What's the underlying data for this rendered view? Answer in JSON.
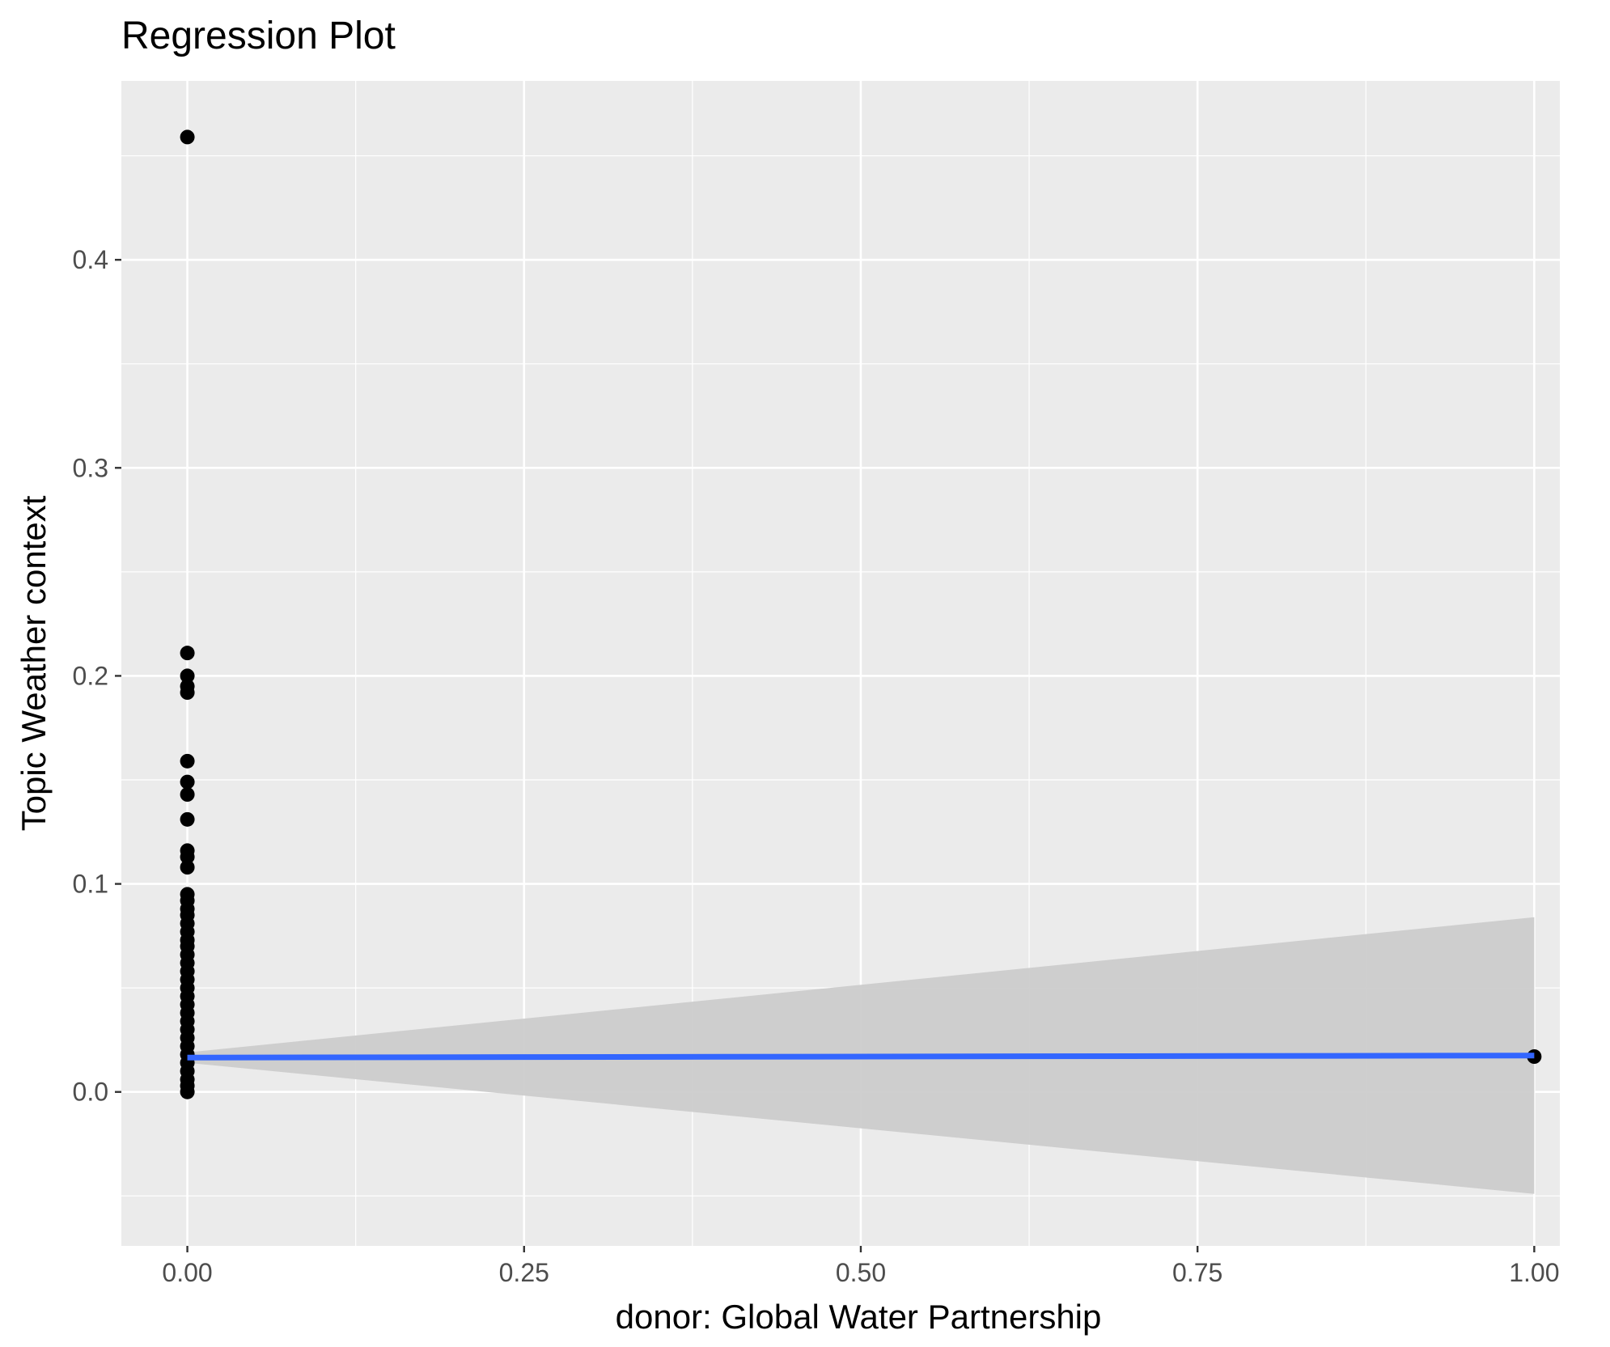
{
  "chart_data": {
    "type": "scatter",
    "title": "Regression Plot",
    "xlabel": "donor: Global Water Partnership",
    "ylabel": "Topic Weather context",
    "xlim": [
      -0.049,
      1.019
    ],
    "ylim": [
      -0.074,
      0.486
    ],
    "x_ticks": [
      {
        "value": 0.0,
        "label": "0.00"
      },
      {
        "value": 0.25,
        "label": "0.25"
      },
      {
        "value": 0.5,
        "label": "0.50"
      },
      {
        "value": 0.75,
        "label": "0.75"
      },
      {
        "value": 1.0,
        "label": "1.00"
      }
    ],
    "y_ticks": [
      {
        "value": 0.0,
        "label": "0.0"
      },
      {
        "value": 0.1,
        "label": "0.1"
      },
      {
        "value": 0.2,
        "label": "0.2"
      },
      {
        "value": 0.3,
        "label": "0.3"
      },
      {
        "value": 0.4,
        "label": "0.4"
      }
    ],
    "grid": true,
    "legend": "none",
    "points": [
      {
        "x": 0,
        "y": 0.459
      },
      {
        "x": 0,
        "y": 0.211
      },
      {
        "x": 0,
        "y": 0.2
      },
      {
        "x": 0,
        "y": 0.195
      },
      {
        "x": 0,
        "y": 0.192
      },
      {
        "x": 0,
        "y": 0.159
      },
      {
        "x": 0,
        "y": 0.149
      },
      {
        "x": 0,
        "y": 0.143
      },
      {
        "x": 0,
        "y": 0.131
      },
      {
        "x": 0,
        "y": 0.116
      },
      {
        "x": 0,
        "y": 0.113
      },
      {
        "x": 0,
        "y": 0.108
      },
      {
        "x": 0,
        "y": 0.095
      },
      {
        "x": 0,
        "y": 0.092
      },
      {
        "x": 0,
        "y": 0.088
      },
      {
        "x": 0,
        "y": 0.085
      },
      {
        "x": 0,
        "y": 0.081
      },
      {
        "x": 0,
        "y": 0.077
      },
      {
        "x": 0,
        "y": 0.073
      },
      {
        "x": 0,
        "y": 0.07
      },
      {
        "x": 0,
        "y": 0.066
      },
      {
        "x": 0,
        "y": 0.062
      },
      {
        "x": 0,
        "y": 0.058
      },
      {
        "x": 0,
        "y": 0.054
      },
      {
        "x": 0,
        "y": 0.05
      },
      {
        "x": 0,
        "y": 0.046
      },
      {
        "x": 0,
        "y": 0.042
      },
      {
        "x": 0,
        "y": 0.038
      },
      {
        "x": 0,
        "y": 0.034
      },
      {
        "x": 0,
        "y": 0.03
      },
      {
        "x": 0,
        "y": 0.026
      },
      {
        "x": 0,
        "y": 0.022
      },
      {
        "x": 0,
        "y": 0.018
      },
      {
        "x": 0,
        "y": 0.014
      },
      {
        "x": 0,
        "y": 0.01
      },
      {
        "x": 0,
        "y": 0.006
      },
      {
        "x": 0,
        "y": 0.003
      },
      {
        "x": 0,
        "y": 0.0
      },
      {
        "x": 1,
        "y": 0.017
      }
    ],
    "regression_line": {
      "x": [
        0,
        1
      ],
      "y": [
        0.0165,
        0.0175
      ],
      "color": "#3366ff"
    },
    "confidence_band": {
      "x": [
        0,
        1
      ],
      "upper": [
        0.019,
        0.084
      ],
      "lower": [
        0.014,
        -0.049
      ],
      "color": "#cccccc"
    },
    "colors": {
      "panel": "#ebebeb",
      "grid": "#ffffff",
      "point": "#000000",
      "tick_label": "#4d4d4d",
      "tick_mark": "#333333"
    }
  }
}
